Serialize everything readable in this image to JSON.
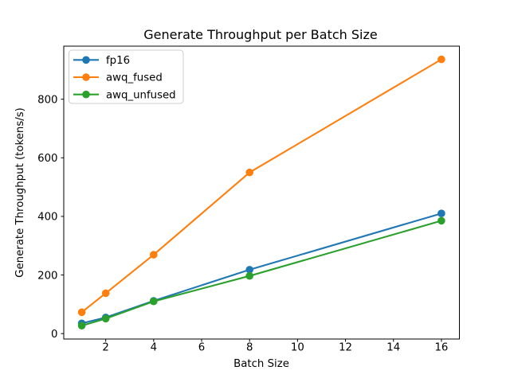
{
  "chart_data": {
    "type": "line",
    "title": "Generate Throughput per Batch Size",
    "xlabel": "Batch Size",
    "ylabel": "Generate Throughput (tokens/s)",
    "x": [
      1,
      2,
      4,
      8,
      16
    ],
    "series": [
      {
        "name": "fp16",
        "color": "#1f77b4",
        "values": [
          35,
          55,
          112,
          218,
          410
        ]
      },
      {
        "name": "awq_fused",
        "color": "#ff7f0e",
        "values": [
          73,
          138,
          269,
          550,
          936
        ]
      },
      {
        "name": "awq_unfused",
        "color": "#2ca02c",
        "values": [
          27,
          51,
          110,
          197,
          385
        ]
      }
    ],
    "xticks": [
      2,
      4,
      6,
      8,
      10,
      12,
      14,
      16
    ],
    "yticks": [
      0,
      200,
      400,
      600,
      800
    ],
    "xlim": [
      0.25,
      16.75
    ],
    "ylim": [
      -18.5,
      981
    ],
    "grid": false,
    "legend_position": "upper left",
    "marker": "o",
    "line_style": "solid",
    "background_color": "#ffffff",
    "spine_color": "#000000",
    "legend_border_color": "#cccccc"
  }
}
